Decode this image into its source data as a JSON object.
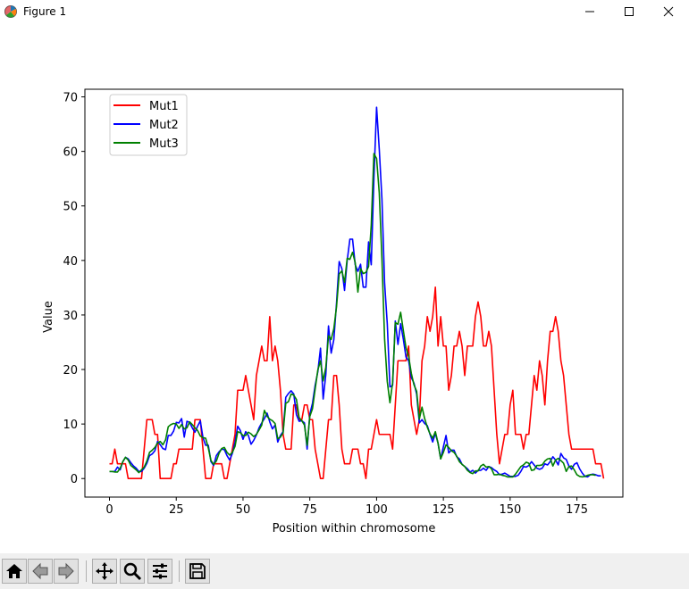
{
  "window": {
    "title": "Figure 1",
    "icons": [
      "matplotlib-icon",
      "minimize-icon",
      "maximize-icon",
      "close-icon"
    ]
  },
  "toolbar": {
    "buttons": [
      "home-icon",
      "back-icon",
      "forward-icon",
      "pan-icon",
      "zoom-icon",
      "configure-subplots-icon",
      "save-icon"
    ]
  },
  "chart_data": {
    "type": "line",
    "title": "",
    "xlabel": "Position within chromosome",
    "ylabel": "Value",
    "xlim": [
      -9.2,
      192.2
    ],
    "ylim": [
      -3.4,
      71.4
    ],
    "xticks": [
      0,
      25,
      50,
      75,
      100,
      125,
      150,
      175
    ],
    "yticks": [
      0,
      10,
      20,
      30,
      40,
      50,
      60,
      70
    ],
    "grid": false,
    "legend_position": "top-left",
    "series": [
      {
        "name": "Mut1",
        "color": "#ff0000",
        "values": [
          2.7,
          2.7,
          5.4,
          2.7,
          2.7,
          2.7,
          2.7,
          0,
          0,
          0,
          0,
          0,
          0,
          5.4,
          10.8,
          10.8,
          10.8,
          8.1,
          8.1,
          0,
          0,
          0,
          0,
          0,
          2.7,
          2.7,
          5.4,
          5.4,
          5.4,
          5.4,
          5.4,
          5.4,
          10.8,
          10.8,
          10.8,
          5.4,
          0,
          0,
          0,
          2.7,
          2.7,
          2.7,
          2.7,
          0,
          0,
          2.7,
          5.4,
          8.1,
          16.2,
          16.2,
          16.2,
          18.9,
          16.2,
          13.5,
          10.8,
          18.9,
          21.6,
          24.3,
          21.6,
          21.6,
          29.7,
          21.6,
          24.3,
          21.6,
          16.2,
          8.1,
          5.4,
          5.4,
          5.4,
          13.5,
          13.5,
          10.8,
          10.8,
          13.5,
          13.5,
          10.8,
          10.8,
          5.4,
          2.7,
          0,
          0,
          5.4,
          10.8,
          10.8,
          18.9,
          18.9,
          13.5,
          5.4,
          2.7,
          2.7,
          2.7,
          5.4,
          5.4,
          5.4,
          2.7,
          2.7,
          0,
          5.4,
          5.4,
          8.1,
          10.8,
          8.1,
          8.1,
          8.1,
          8.1,
          8.1,
          5.4,
          13.5,
          21.6,
          21.6,
          21.6,
          21.6,
          24.3,
          13.5,
          10.8,
          8.1,
          10.8,
          21.6,
          24.3,
          29.7,
          27,
          29.7,
          35.1,
          24.3,
          29.7,
          24.3,
          24.3,
          16.2,
          18.9,
          24.3,
          24.3,
          27,
          24.3,
          18.9,
          24.3,
          24.3,
          24.3,
          29.7,
          32.4,
          29.7,
          24.3,
          24.3,
          27,
          24.3,
          16.2,
          8.1,
          2.7,
          5.4,
          8.1,
          8.1,
          13.5,
          16.2,
          8.1,
          8.1,
          8.1,
          5.4,
          8.1,
          8.1,
          13.5,
          18.9,
          16.2,
          21.6,
          18.9,
          13.5,
          21.6,
          27,
          27,
          29.7,
          27,
          21.6,
          18.9,
          13.5,
          8.1,
          5.4,
          5.4,
          5.4,
          5.4,
          5.4,
          5.4,
          5.4,
          5.4,
          5.4,
          2.7,
          2.7,
          2.7,
          0
        ]
      },
      {
        "name": "Mut2",
        "color": "#0000ff",
        "values": [
          1.3,
          1.3,
          1.3,
          2.1,
          1.6,
          3.1,
          3.9,
          3.6,
          2.9,
          2.3,
          1.9,
          1.3,
          1.3,
          1.9,
          2.8,
          4.2,
          4.5,
          5.1,
          6.8,
          6.2,
          5.5,
          5.3,
          7.9,
          7.9,
          8.7,
          10.3,
          10.2,
          11,
          7.6,
          10.5,
          10.3,
          9.3,
          8.5,
          9.6,
          10.6,
          7.5,
          6.1,
          6.1,
          3.1,
          2.4,
          4.2,
          4.9,
          5.4,
          5.3,
          4.2,
          3.4,
          4.6,
          6.7,
          9.6,
          8.8,
          7.2,
          8.6,
          7.9,
          6.3,
          7,
          8,
          9.3,
          10.2,
          11,
          12,
          10.4,
          9.1,
          9.8,
          6.7,
          7.9,
          8.6,
          14.9,
          15.6,
          16.1,
          15.5,
          11.7,
          10.5,
          10.6,
          10.2,
          5.4,
          11.8,
          13.8,
          17.1,
          19.6,
          23.9,
          14.6,
          19.1,
          28,
          23,
          25.5,
          32.2,
          39.8,
          38.5,
          34.5,
          40,
          43.9,
          43.9,
          39.2,
          38,
          39.3,
          35.1,
          35.1,
          43.4,
          39.2,
          55.1,
          68.1,
          60.4,
          51.3,
          35.9,
          28.4,
          16.8,
          17.1,
          28.9,
          24.6,
          28.4,
          25.6,
          22.3,
          21.6,
          18.5,
          17.5,
          15.5,
          10.2,
          10.8,
          10.1,
          9.7,
          8.1,
          6.7,
          8.3,
          6.5,
          3.6,
          5.8,
          7.9,
          4.7,
          5.2,
          5.2,
          4,
          3.6,
          2.6,
          2.2,
          1.8,
          1.2,
          1.5,
          1,
          1.5,
          1.5,
          1.9,
          1.5,
          2.2,
          2,
          1.6,
          1.3,
          0.7,
          0.8,
          1,
          0.7,
          0.4,
          0.4,
          0.4,
          0.6,
          1.3,
          2.2,
          2.1,
          2.4,
          3.1,
          2.5,
          1.9,
          1.7,
          1.9,
          2.7,
          2.5,
          3.1,
          4,
          3.4,
          2.5,
          4.6,
          3.8,
          3.5,
          2.3,
          1.7,
          2.6,
          2.9,
          1.8,
          1,
          0.4,
          0.3,
          0.7,
          0.8,
          0.7,
          0.5,
          0.5
        ]
      },
      {
        "name": "Mut3",
        "color": "#008000",
        "values": [
          1.3,
          1.3,
          1.2,
          1.2,
          1.9,
          3.1,
          3.9,
          3.4,
          2.4,
          2,
          1.6,
          1.1,
          1.6,
          2.1,
          3.2,
          4.8,
          5.2,
          5.7,
          6.5,
          6.8,
          6.2,
          7.1,
          9.5,
          9.9,
          10.1,
          10,
          9.2,
          9.9,
          9.1,
          9.3,
          10.4,
          9.9,
          9.3,
          8.8,
          7.8,
          7.5,
          7.4,
          5.6,
          3.3,
          2.6,
          3.2,
          4.6,
          5.5,
          5.7,
          4.8,
          4.3,
          4.8,
          5.9,
          8.6,
          8.4,
          7.9,
          7.9,
          8.5,
          8.2,
          7.7,
          8.1,
          8.9,
          9.8,
          12.5,
          11.4,
          10.9,
          10.6,
          10.1,
          7.3,
          7.6,
          8.4,
          13.8,
          14.1,
          15.5,
          15.3,
          14.5,
          11.2,
          10.6,
          9.8,
          6.1,
          11.4,
          12.8,
          16.4,
          19.9,
          21.6,
          17.9,
          20.4,
          26.2,
          25.5,
          27.5,
          31.5,
          37.5,
          38.1,
          36,
          40.4,
          40.2,
          41.5,
          39.6,
          34.2,
          38.5,
          37.6,
          37.8,
          38.9,
          46.5,
          59.6,
          58.7,
          52.4,
          40.3,
          25.6,
          17.8,
          13.9,
          17.6,
          28.6,
          28.3,
          30.5,
          27.2,
          24,
          22.4,
          19.3,
          17.2,
          16,
          10.9,
          13.1,
          11,
          9.4,
          8.2,
          7.4,
          8.6,
          6.5,
          3.6,
          4.8,
          6.2,
          5.7,
          5.1,
          4.8,
          4.1,
          3.1,
          2.6,
          2.2,
          1.5,
          1.1,
          0.9,
          1.4,
          1.4,
          2.3,
          2.6,
          2.1,
          2.2,
          1.8,
          0.7,
          0.7,
          0.8,
          0.6,
          0.5,
          0.3,
          0.3,
          0.3,
          0.8,
          1.5,
          2.2,
          2.5,
          3,
          2.8,
          1.5,
          1.6,
          2.4,
          2.4,
          2.5,
          3.2,
          3.6,
          3.7,
          2.3,
          3.4,
          3.7,
          3.3,
          2.8,
          1.3,
          2.2,
          2.3,
          1.6,
          0.7,
          0.4,
          0.3,
          0.4,
          0.6,
          0.7,
          0.7,
          0.6
        ]
      }
    ]
  }
}
